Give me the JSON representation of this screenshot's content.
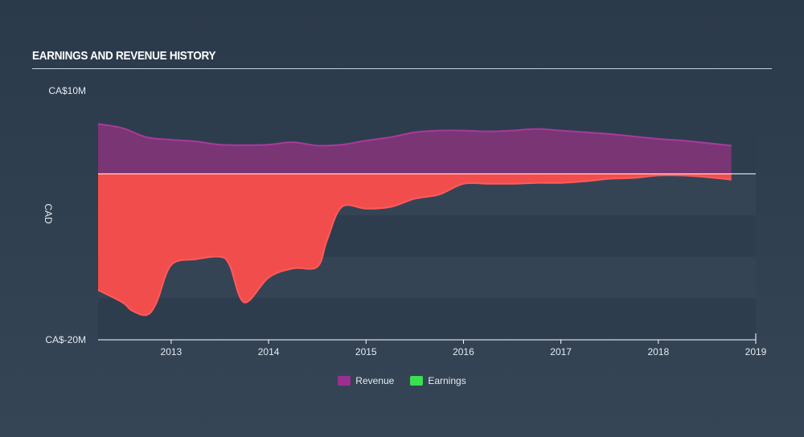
{
  "page": {
    "title": "EARNINGS AND REVENUE HISTORY"
  },
  "chart_data": {
    "type": "area",
    "title": "EARNINGS AND REVENUE HISTORY",
    "ylabel": "CAD",
    "xlabel": "",
    "ylim": [
      -20,
      10
    ],
    "xlim": [
      2012.25,
      2019.0
    ],
    "y_tick_labels": [
      "CA$10M",
      "CA$-20M"
    ],
    "x_ticks": [
      2013,
      2014,
      2015,
      2016,
      2017,
      2018,
      2019
    ],
    "colors": {
      "revenue": "#9c2f8f",
      "earnings": "#f24d4d",
      "earnings_legend": "#39e04f",
      "zero_line": "#ffffff"
    },
    "series": [
      {
        "name": "Revenue",
        "x": [
          2012.25,
          2012.5,
          2012.75,
          2013.0,
          2013.25,
          2013.5,
          2013.75,
          2014.0,
          2014.25,
          2014.5,
          2014.75,
          2015.0,
          2015.25,
          2015.5,
          2015.75,
          2016.0,
          2016.25,
          2016.5,
          2016.75,
          2017.0,
          2017.25,
          2017.5,
          2017.75,
          2018.0,
          2018.25,
          2018.5,
          2018.75
        ],
        "values": [
          6.0,
          5.5,
          4.4,
          4.1,
          3.9,
          3.5,
          3.45,
          3.5,
          3.8,
          3.4,
          3.5,
          4.0,
          4.4,
          5.0,
          5.2,
          5.2,
          5.1,
          5.2,
          5.4,
          5.2,
          5.0,
          4.8,
          4.5,
          4.2,
          4.0,
          3.7,
          3.4
        ]
      },
      {
        "name": "Earnings",
        "x": [
          2012.25,
          2012.5,
          2012.6,
          2012.75,
          2012.85,
          2013.0,
          2013.25,
          2013.5,
          2013.6,
          2013.75,
          2014.0,
          2014.25,
          2014.5,
          2014.6,
          2014.75,
          2015.0,
          2015.25,
          2015.5,
          2015.75,
          2016.0,
          2016.25,
          2016.5,
          2016.75,
          2017.0,
          2017.25,
          2017.5,
          2017.75,
          2018.0,
          2018.25,
          2018.5,
          2018.75
        ],
        "values": [
          -14.0,
          -15.5,
          -16.5,
          -17.0,
          -15.5,
          -11.0,
          -10.3,
          -10.0,
          -11.0,
          -15.5,
          -12.5,
          -11.4,
          -11.2,
          -8.0,
          -4.0,
          -4.2,
          -4.0,
          -3.0,
          -2.5,
          -1.2,
          -1.2,
          -1.2,
          -1.1,
          -1.1,
          -0.9,
          -0.6,
          -0.5,
          -0.2,
          -0.2,
          -0.4,
          -0.7
        ]
      }
    ]
  },
  "legend": {
    "items": [
      {
        "label": "Revenue"
      },
      {
        "label": "Earnings"
      }
    ]
  }
}
